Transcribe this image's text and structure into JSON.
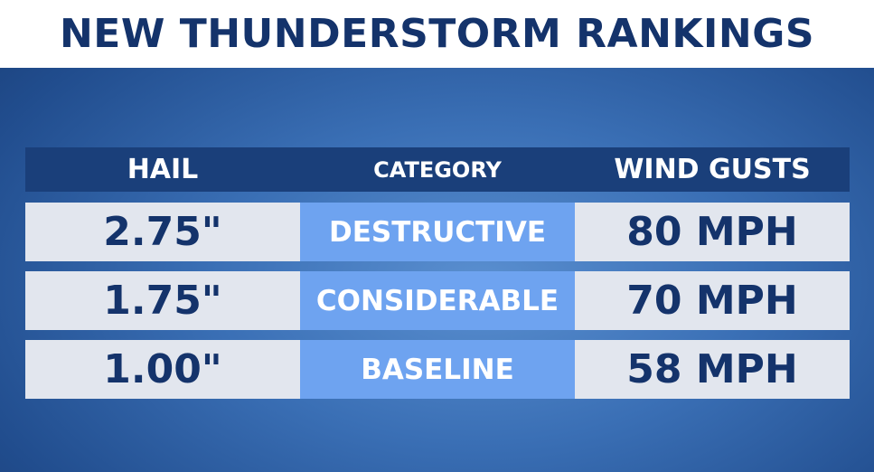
{
  "header": {
    "title": "NEW THUNDERSTORM RANKINGS"
  },
  "table": {
    "columns": [
      "HAIL",
      "CATEGORY",
      "WIND GUSTS"
    ],
    "rows": [
      [
        "2.75\"",
        "DESTRUCTIVE",
        "80 MPH"
      ],
      [
        "1.75\"",
        "CONSIDERABLE",
        "70 MPH"
      ],
      [
        "1.00\"",
        "BASELINE",
        "58 MPH"
      ]
    ]
  }
}
